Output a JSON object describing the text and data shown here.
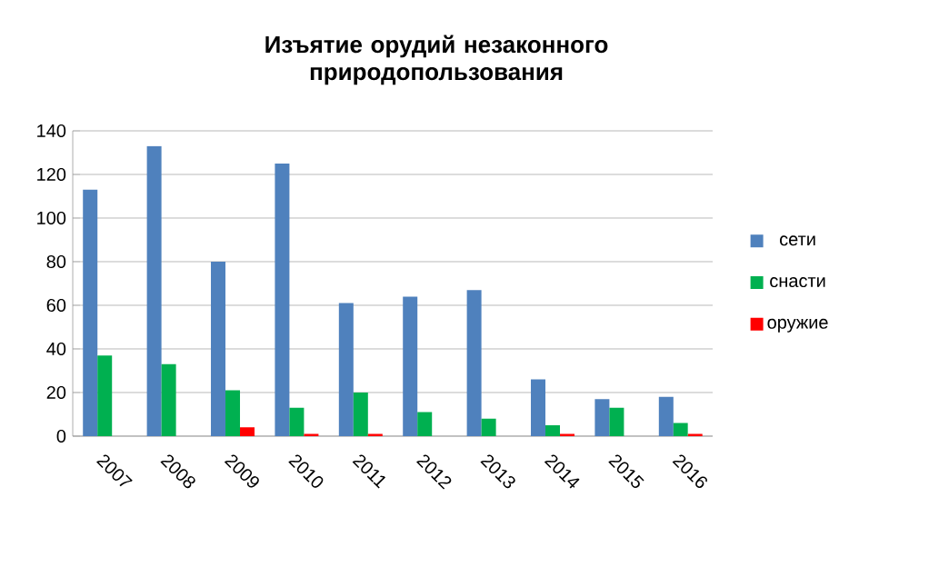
{
  "chart_data": {
    "type": "bar",
    "title": "Изъятие орудий незаконного природопользования",
    "categories": [
      "2007",
      "2008",
      "2009",
      "2010",
      "2011",
      "2012",
      "2013",
      "2014",
      "2015",
      "2016"
    ],
    "series": [
      {
        "name": "сети",
        "color": "#4f81bd",
        "values": [
          113,
          133,
          80,
          125,
          61,
          64,
          67,
          26,
          17,
          18
        ]
      },
      {
        "name": "снасти",
        "color": "#00b050",
        "values": [
          37,
          33,
          21,
          13,
          20,
          11,
          8,
          5,
          13,
          6
        ]
      },
      {
        "name": "оружие",
        "color": "#ff0000",
        "values": [
          0,
          0,
          4,
          1,
          1,
          0,
          0,
          1,
          0,
          1
        ]
      }
    ],
    "ylim": [
      0,
      140
    ],
    "yticks": [
      0,
      20,
      40,
      60,
      80,
      100,
      120,
      140
    ],
    "grid": "y",
    "legend": "right"
  }
}
